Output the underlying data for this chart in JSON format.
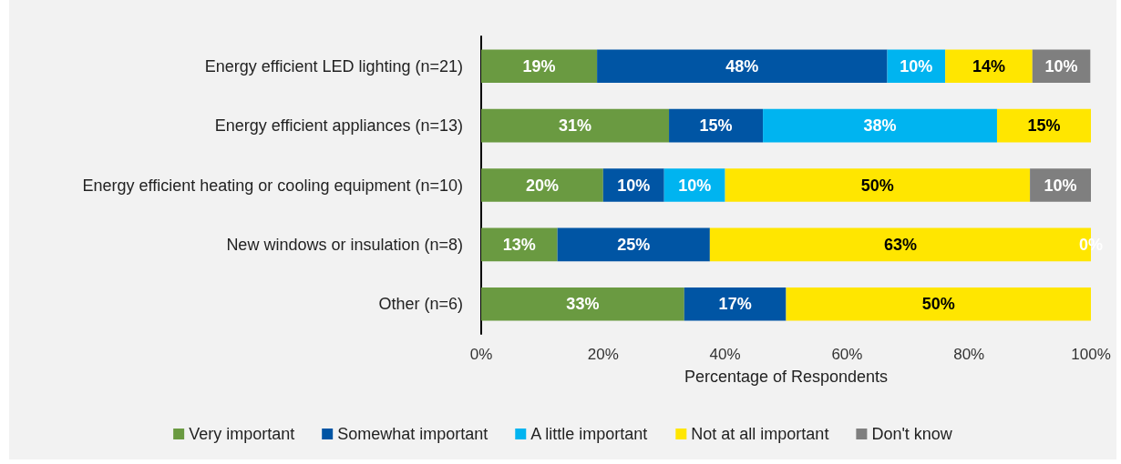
{
  "chart_data": {
    "type": "bar",
    "orientation": "horizontal",
    "stacked": true,
    "xlabel": "Percentage of Respondents",
    "categories": [
      "Energy efficient LED lighting (n=21)",
      "Energy efficient appliances (n=13)",
      "Energy efficient heating or cooling equipment (n=10)",
      "New windows or insulation (n=8)",
      "Other (n=6)"
    ],
    "series": [
      {
        "name": "Very important",
        "color": "#6a9a41",
        "values": [
          19.0,
          30.8,
          20,
          12.5,
          33.3
        ],
        "value_labels": [
          "19%",
          "31%",
          "20%",
          "13%",
          "33%"
        ]
      },
      {
        "name": "Somewhat important",
        "color": "#0055a4",
        "values": [
          47.6,
          15.4,
          10,
          25,
          16.7
        ],
        "value_labels": [
          "48%",
          "15%",
          "10%",
          "25%",
          "17%"
        ]
      },
      {
        "name": "A little important",
        "color": "#00b4f0",
        "values": [
          9.5,
          38.4,
          10,
          null,
          null
        ],
        "value_labels": [
          "10%",
          "38%",
          "10%",
          null,
          null
        ]
      },
      {
        "name": "Not at all important",
        "color": "#ffe600",
        "values": [
          14.3,
          15.4,
          50,
          62.5,
          50
        ],
        "value_labels": [
          "14%",
          "15%",
          "50%",
          "63%",
          "50%"
        ]
      },
      {
        "name": "Don't know",
        "color": "#7f7f7f",
        "values": [
          9.5,
          null,
          10,
          0,
          null
        ],
        "value_labels": [
          "10%",
          null,
          "10%",
          "0%",
          null
        ]
      }
    ],
    "xlim": [
      0,
      100
    ],
    "xticks": [
      {
        "value": 0,
        "label": "0%"
      },
      {
        "value": 20,
        "label": "20%"
      },
      {
        "value": 40,
        "label": "40%"
      },
      {
        "value": 60,
        "label": "60%"
      },
      {
        "value": 80,
        "label": "80%"
      },
      {
        "value": 100,
        "label": "100%"
      }
    ],
    "grid": false,
    "legend": "bottom"
  }
}
